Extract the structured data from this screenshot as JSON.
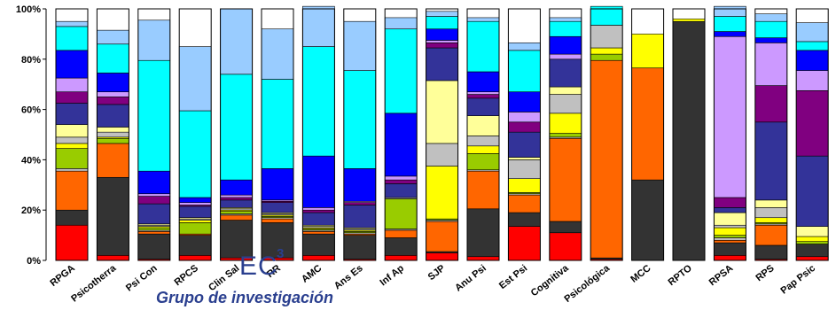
{
  "chart_data": {
    "type": "bar",
    "stacked": true,
    "categories": [
      "RPGA",
      "Psicotherra",
      "Psi Con",
      "RPCS",
      "Clin Sal",
      "RR",
      "AMC",
      "Ans Es",
      "Inf Ap",
      "SJP",
      "Anu Psi",
      "Est Psi",
      "Cognitiva",
      "Psicológica",
      "MCC",
      "RPTO",
      "RPSA",
      "RPS",
      "Pap Psic"
    ],
    "y_tick_labels": [
      "0%",
      "20%",
      "40%",
      "60%",
      "80%",
      "100%"
    ],
    "ylim": [
      0,
      100
    ],
    "grid": false,
    "series": [
      {
        "color": "#ff0000",
        "values": [
          14,
          2,
          0.5,
          2,
          1,
          1,
          2,
          0.5,
          2,
          3,
          1.5,
          13.5,
          11,
          0.5,
          0,
          0,
          2,
          0.5,
          1.5
        ]
      },
      {
        "color": "#333333",
        "values": [
          6,
          31,
          10,
          8,
          15,
          14,
          8.5,
          9.5,
          7,
          0.5,
          19,
          5.5,
          4.5,
          0.5,
          32,
          95,
          5,
          5.5,
          5
        ]
      },
      {
        "color": "#ff6600",
        "values": [
          15.5,
          13.5,
          1,
          0.5,
          2,
          1.5,
          1,
          0.5,
          3,
          12,
          15,
          7,
          33,
          78.5,
          44.5,
          0,
          1,
          8,
          0
        ]
      },
      {
        "color": "#c0c0c0",
        "values": [
          1,
          0,
          0.5,
          0,
          0.5,
          0.5,
          0.5,
          0.5,
          0.5,
          0.5,
          0.5,
          0.5,
          0.5,
          0,
          0,
          0,
          1,
          0.5,
          0
        ]
      },
      {
        "color": "#99cc00",
        "values": [
          8,
          2,
          1,
          4.5,
          1,
          0.5,
          0.5,
          0.5,
          12,
          0.5,
          6.5,
          0.5,
          1.5,
          2.5,
          0,
          0,
          1,
          0.5,
          1
        ]
      },
      {
        "color": "#ffff00",
        "values": [
          2,
          0.5,
          0.5,
          1,
          0.5,
          0.5,
          0.5,
          0.5,
          0,
          21,
          3,
          5.5,
          8,
          2.5,
          13.5,
          1,
          3,
          2,
          2
        ]
      },
      {
        "color": "#c0c0c0",
        "values": [
          2.5,
          2,
          0.5,
          0.5,
          0.5,
          0.5,
          0.5,
          0.5,
          0.5,
          9,
          4,
          7.5,
          7.5,
          9,
          0,
          0,
          1,
          4,
          0
        ]
      },
      {
        "color": "#ffff99",
        "values": [
          5,
          2,
          0.5,
          0.5,
          0.5,
          0.5,
          0.5,
          0.5,
          0,
          25,
          8,
          1,
          3,
          0,
          0,
          0,
          5,
          3,
          4
        ]
      },
      {
        "color": "#333399",
        "values": [
          8.5,
          9,
          8,
          4.5,
          3,
          4,
          5,
          9,
          5.5,
          13,
          7,
          10,
          11,
          0,
          0,
          0,
          2,
          31,
          28
        ]
      },
      {
        "color": "#800080",
        "values": [
          4.5,
          3,
          3,
          0.5,
          1,
          0.5,
          1,
          1,
          1.5,
          2,
          1.5,
          4,
          0,
          0,
          0,
          0,
          4,
          14.5,
          26
        ]
      },
      {
        "color": "#cc99ff",
        "values": [
          5.5,
          2,
          1,
          1,
          1,
          0.5,
          1,
          0.5,
          1.5,
          1,
          1,
          4,
          2,
          0,
          0,
          0,
          64,
          17,
          8
        ]
      },
      {
        "color": "#0000ff",
        "values": [
          11,
          7.5,
          9,
          2,
          6,
          12.5,
          20.5,
          13,
          25,
          4.5,
          8,
          8,
          7,
          0,
          0,
          0,
          2,
          2,
          8
        ]
      },
      {
        "color": "#00ffff",
        "values": [
          9.5,
          11.5,
          44,
          34.5,
          42,
          35.5,
          43.5,
          39,
          33.5,
          5,
          20,
          16.5,
          6,
          7.5,
          0,
          0,
          6,
          6.5,
          3.5
        ]
      },
      {
        "color": "#99ccff",
        "values": [
          2,
          5.5,
          16,
          25.5,
          26,
          20,
          16,
          19.5,
          4.5,
          2,
          1.5,
          3,
          1.5,
          0,
          0,
          0,
          4,
          3,
          7.5
        ]
      }
    ]
  },
  "labels": {
    "logo_text": "EC",
    "logo_superscript": "3",
    "group_name": "Grupo de investigación"
  }
}
